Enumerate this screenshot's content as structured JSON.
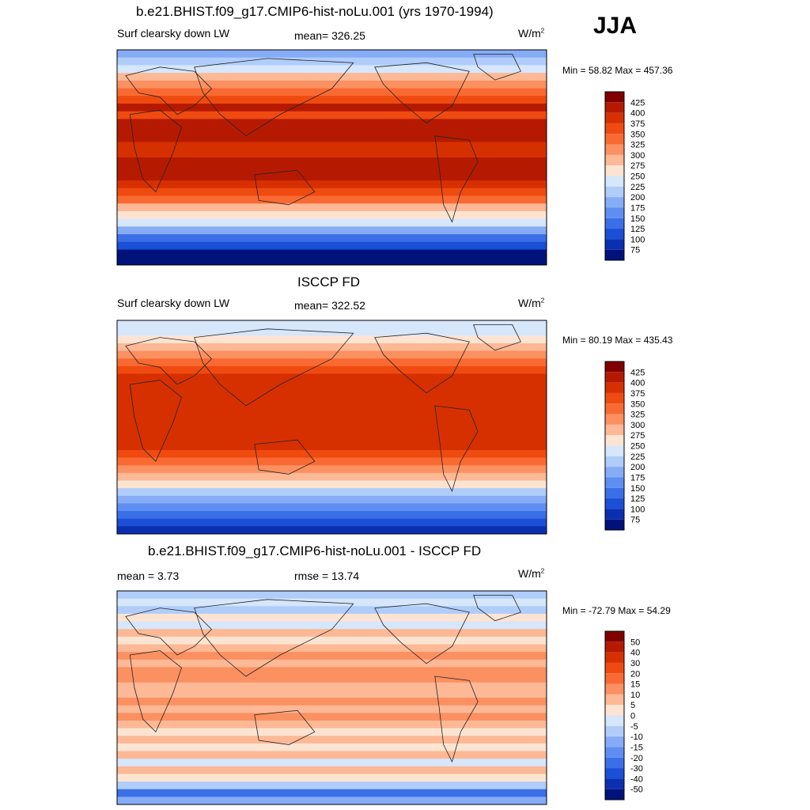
{
  "season": "JJA",
  "chart_data": [
    {
      "type": "heatmap",
      "title": "b.e21.BHIST.f09_g17.CMIP6-hist-noLu.001 (yrs 1970-1994)",
      "left_label": "Surf clearsky down LW",
      "center_label": "mean= 326.25",
      "units": "W/m",
      "units_sup": "2",
      "minmax": "Min =  58.82 Max = 457.36",
      "levels": [
        "425",
        "400",
        "375",
        "350",
        "325",
        "300",
        "275",
        "250",
        "225",
        "200",
        "175",
        "150",
        "125",
        "100",
        "75"
      ],
      "colors": [
        "#800000",
        "#b51a00",
        "#d73000",
        "#ef4a10",
        "#f96a32",
        "#fb9061",
        "#fdb895",
        "#fde4d2",
        "#d6e6fb",
        "#b0cdfa",
        "#86acf6",
        "#5f8ef2",
        "#3a6fe8",
        "#1a4fd6",
        "#0a2fb0",
        "#00127a"
      ],
      "zonal_profile": [
        10,
        9,
        8,
        6,
        5,
        4,
        3,
        1,
        3,
        1,
        1,
        1,
        2,
        2,
        1,
        1,
        1,
        2,
        3,
        4,
        6,
        7,
        8,
        10,
        12,
        13,
        15,
        15
      ]
    },
    {
      "type": "heatmap",
      "title": "ISCCP FD",
      "left_label": "Surf clearsky down LW",
      "center_label": "mean= 322.52",
      "units": "W/m",
      "units_sup": "2",
      "minmax": "Min =  80.19 Max = 435.43",
      "levels": [
        "425",
        "400",
        "375",
        "350",
        "325",
        "300",
        "275",
        "250",
        "225",
        "200",
        "175",
        "150",
        "125",
        "100",
        "75"
      ],
      "colors": [
        "#800000",
        "#b51a00",
        "#d73000",
        "#ef4a10",
        "#f96a32",
        "#fb9061",
        "#fdb895",
        "#fde4d2",
        "#d6e6fb",
        "#b0cdfa",
        "#86acf6",
        "#5f8ef2",
        "#3a6fe8",
        "#1a4fd6",
        "#0a2fb0",
        "#00127a"
      ],
      "zonal_profile": [
        8,
        8,
        7,
        6,
        5,
        4,
        3,
        2,
        2,
        2,
        2,
        2,
        2,
        2,
        2,
        2,
        2,
        3,
        4,
        5,
        6,
        7,
        9,
        10,
        11,
        12,
        13,
        14
      ]
    },
    {
      "type": "heatmap",
      "title": "b.e21.BHIST.f09_g17.CMIP6-hist-noLu.001 - ISCCP FD",
      "left_label": "mean =   3.73",
      "center_label": "rmse =  13.74",
      "units": "W/m",
      "units_sup": "2",
      "minmax": "Min = -72.79 Max =  54.29",
      "levels": [
        "50",
        "40",
        "30",
        "20",
        "15",
        "10",
        "5",
        "0",
        "-5",
        "-10",
        "-15",
        "-20",
        "-30",
        "-40",
        "-50"
      ],
      "colors": [
        "#800000",
        "#b51a00",
        "#d73000",
        "#ef4a10",
        "#f96a32",
        "#fb9061",
        "#fdb895",
        "#fde4d2",
        "#d6e6fb",
        "#b0cdfa",
        "#86acf6",
        "#5f8ef2",
        "#3a6fe8",
        "#1a4fd6",
        "#0a2fb0",
        "#00127a"
      ],
      "zonal_profile": [
        9,
        8,
        9,
        7,
        8,
        6,
        7,
        6,
        5,
        6,
        5,
        5,
        6,
        6,
        5,
        6,
        5,
        6,
        7,
        6,
        7,
        6,
        8,
        6,
        7,
        9,
        12,
        10
      ]
    }
  ]
}
